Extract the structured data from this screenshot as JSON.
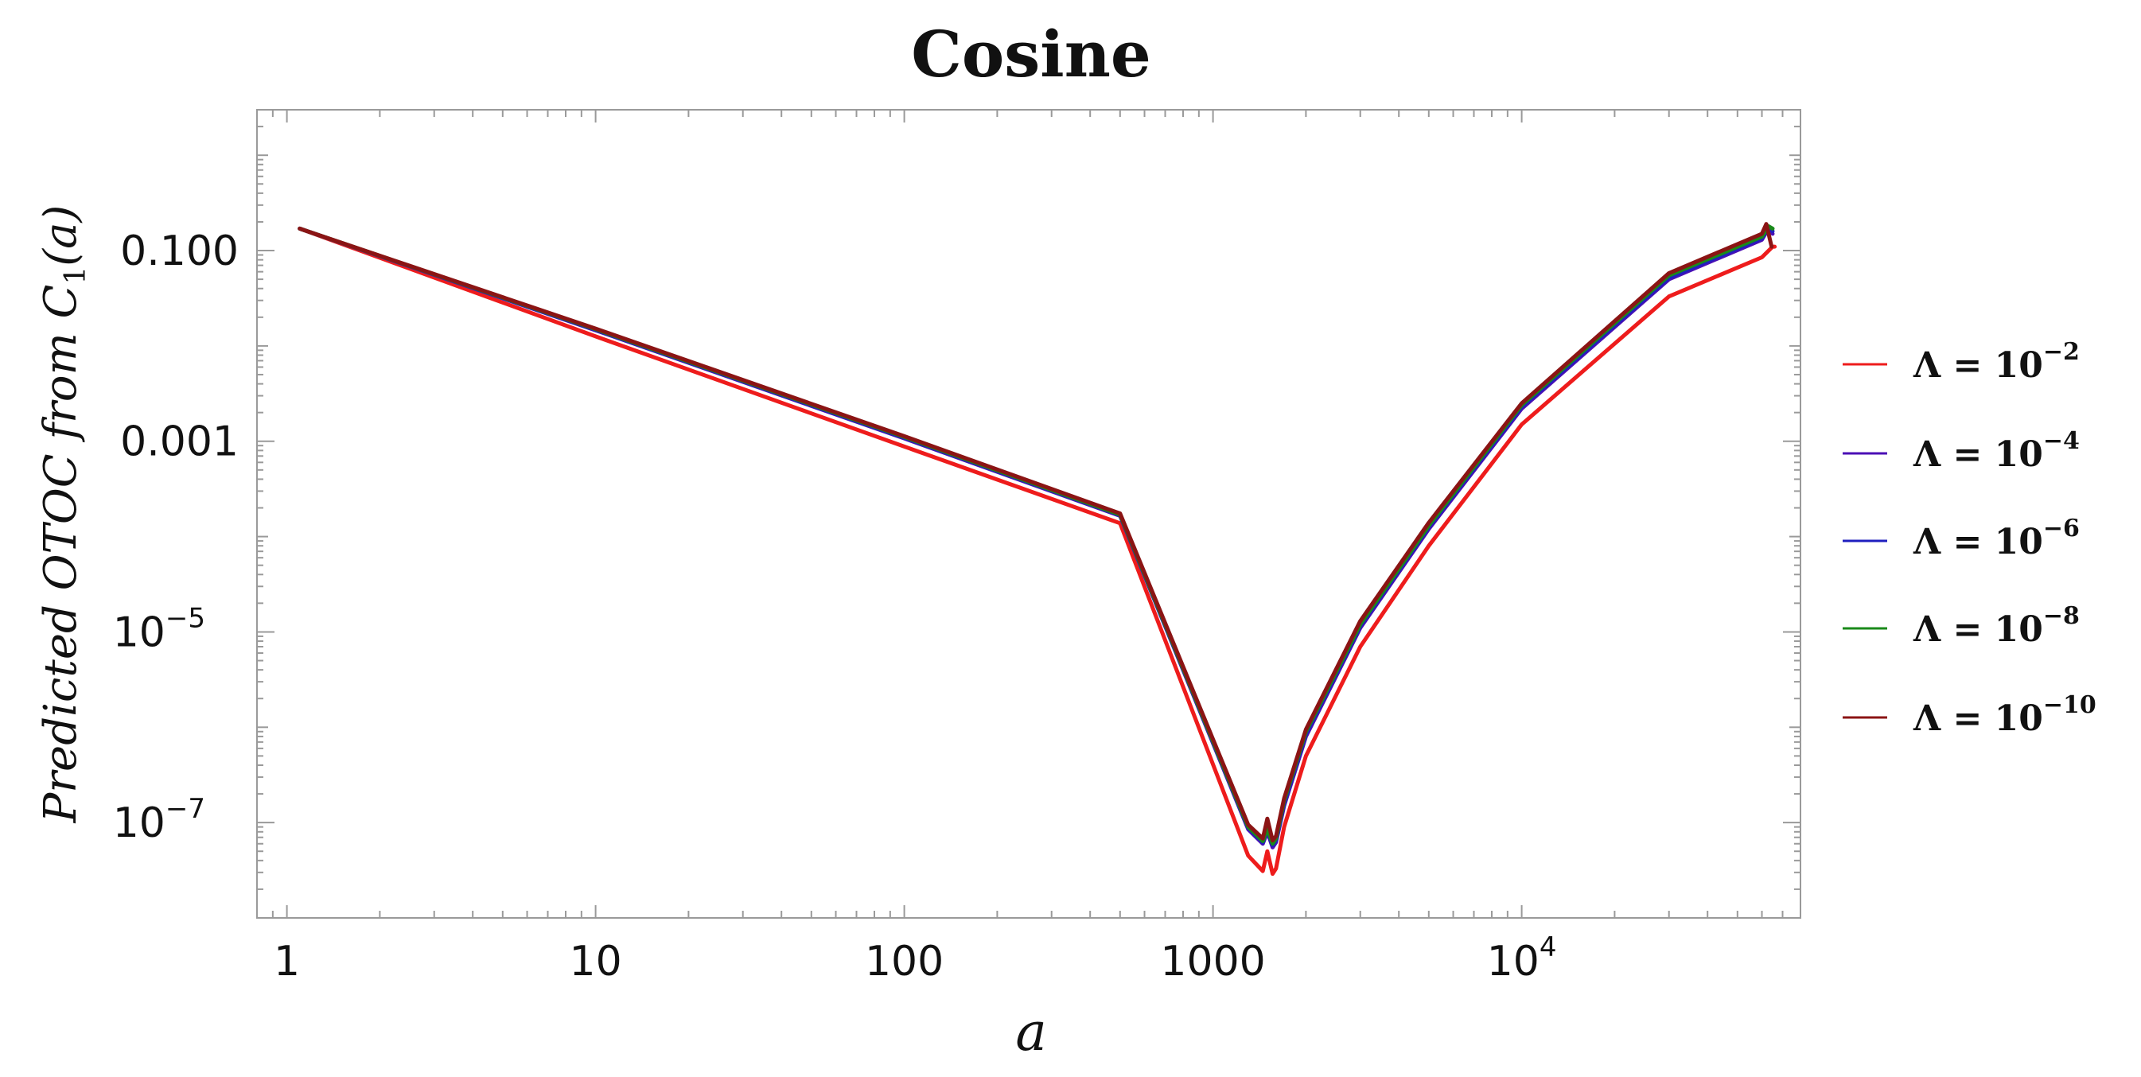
{
  "chart_data": {
    "type": "line",
    "title": "Cosine",
    "xlabel": "a",
    "ylabel_parts": {
      "main": "Predicted OTOC from C",
      "sub": "1",
      "tail": "(a)"
    },
    "x_scale": "log",
    "y_scale": "log",
    "xlim": [
      0.8,
      80000
    ],
    "ylim": [
      1e-08,
      3.0
    ],
    "x_ticks": [
      {
        "value": 1,
        "label": "1",
        "sup": ""
      },
      {
        "value": 10,
        "label": "10",
        "sup": ""
      },
      {
        "value": 100,
        "label": "100",
        "sup": ""
      },
      {
        "value": 1000,
        "label": "1000",
        "sup": ""
      },
      {
        "value": 10000,
        "label": "10",
        "sup": "4"
      }
    ],
    "y_ticks": [
      {
        "value": 0.1,
        "label": "0.100",
        "sup": ""
      },
      {
        "value": 0.001,
        "label": "0.001",
        "sup": ""
      },
      {
        "value": 1e-05,
        "label": "10",
        "sup": "−5"
      },
      {
        "value": 1e-07,
        "label": "10",
        "sup": "−7"
      }
    ],
    "grid": false,
    "legend_position": "right",
    "series": [
      {
        "name": "Λ = 10",
        "exp": "−2",
        "color": "#ee1c1c",
        "x": [
          1.1,
          10,
          100,
          500,
          1300,
          1450,
          1500,
          1560,
          1600,
          1700,
          2000,
          3000,
          5000,
          10000,
          30000,
          60000,
          65000,
          66000
        ],
        "y": [
          0.17,
          0.0126,
          0.00088,
          0.000138,
          4.5e-08,
          3.1e-08,
          5e-08,
          2.9e-08,
          3.3e-08,
          9e-08,
          5e-07,
          7e-06,
          8e-05,
          0.0015,
          0.033,
          0.085,
          0.11,
          0.11
        ]
      },
      {
        "name": "Λ = 10",
        "exp": "−4",
        "color": "#4b0fb5",
        "x": [
          1.1,
          10,
          100,
          500,
          1300,
          1450,
          1500,
          1560,
          1600,
          1700,
          2000,
          3000,
          5000,
          10000,
          30000,
          60000,
          63000,
          65000
        ],
        "y": [
          0.17,
          0.0146,
          0.00107,
          0.000165,
          8.5e-08,
          6e-08,
          8e-08,
          5.5e-08,
          6.2e-08,
          1.5e-07,
          8e-07,
          1.1e-05,
          0.00012,
          0.0022,
          0.05,
          0.13,
          0.17,
          0.15
        ]
      },
      {
        "name": "Λ = 10",
        "exp": "−6",
        "color": "#1f1fbf",
        "x": [
          1.1,
          10,
          100,
          500,
          1300,
          1450,
          1500,
          1560,
          1600,
          1700,
          2000,
          3000,
          5000,
          10000,
          30000,
          60000,
          63000,
          65000
        ],
        "y": [
          0.17,
          0.0148,
          0.00109,
          0.000168,
          8.8e-08,
          6.2e-08,
          8.3e-08,
          5.8e-08,
          6.5e-08,
          1.6e-07,
          8.5e-07,
          1.15e-05,
          0.000125,
          0.0023,
          0.052,
          0.135,
          0.175,
          0.16
        ]
      },
      {
        "name": "Λ = 10",
        "exp": "−8",
        "color": "#1a8a1a",
        "x": [
          1.1,
          10,
          100,
          500,
          1300,
          1450,
          1500,
          1560,
          1600,
          1700,
          2000,
          3000,
          5000,
          10000,
          30000,
          60000,
          63000,
          65000
        ],
        "y": [
          0.17,
          0.015,
          0.00111,
          0.00017,
          9e-08,
          6.4e-08,
          8.6e-08,
          6e-08,
          6.8e-08,
          1.7e-07,
          9e-07,
          1.2e-05,
          0.00013,
          0.0024,
          0.055,
          0.14,
          0.18,
          0.17
        ]
      },
      {
        "name": "Λ = 10",
        "exp": "−10",
        "color": "#8b1414",
        "x": [
          1.1,
          10,
          100,
          500,
          1300,
          1450,
          1500,
          1560,
          1600,
          1700,
          2000,
          3000,
          5000,
          10000,
          30000,
          60000,
          62000,
          64500
        ],
        "y": [
          0.17,
          0.0152,
          0.00113,
          0.000175,
          9.5e-08,
          6.8e-08,
          1.1e-07,
          6.5e-08,
          7.2e-08,
          1.8e-07,
          9.5e-07,
          1.3e-05,
          0.00014,
          0.0025,
          0.058,
          0.15,
          0.19,
          0.11
        ]
      }
    ]
  }
}
